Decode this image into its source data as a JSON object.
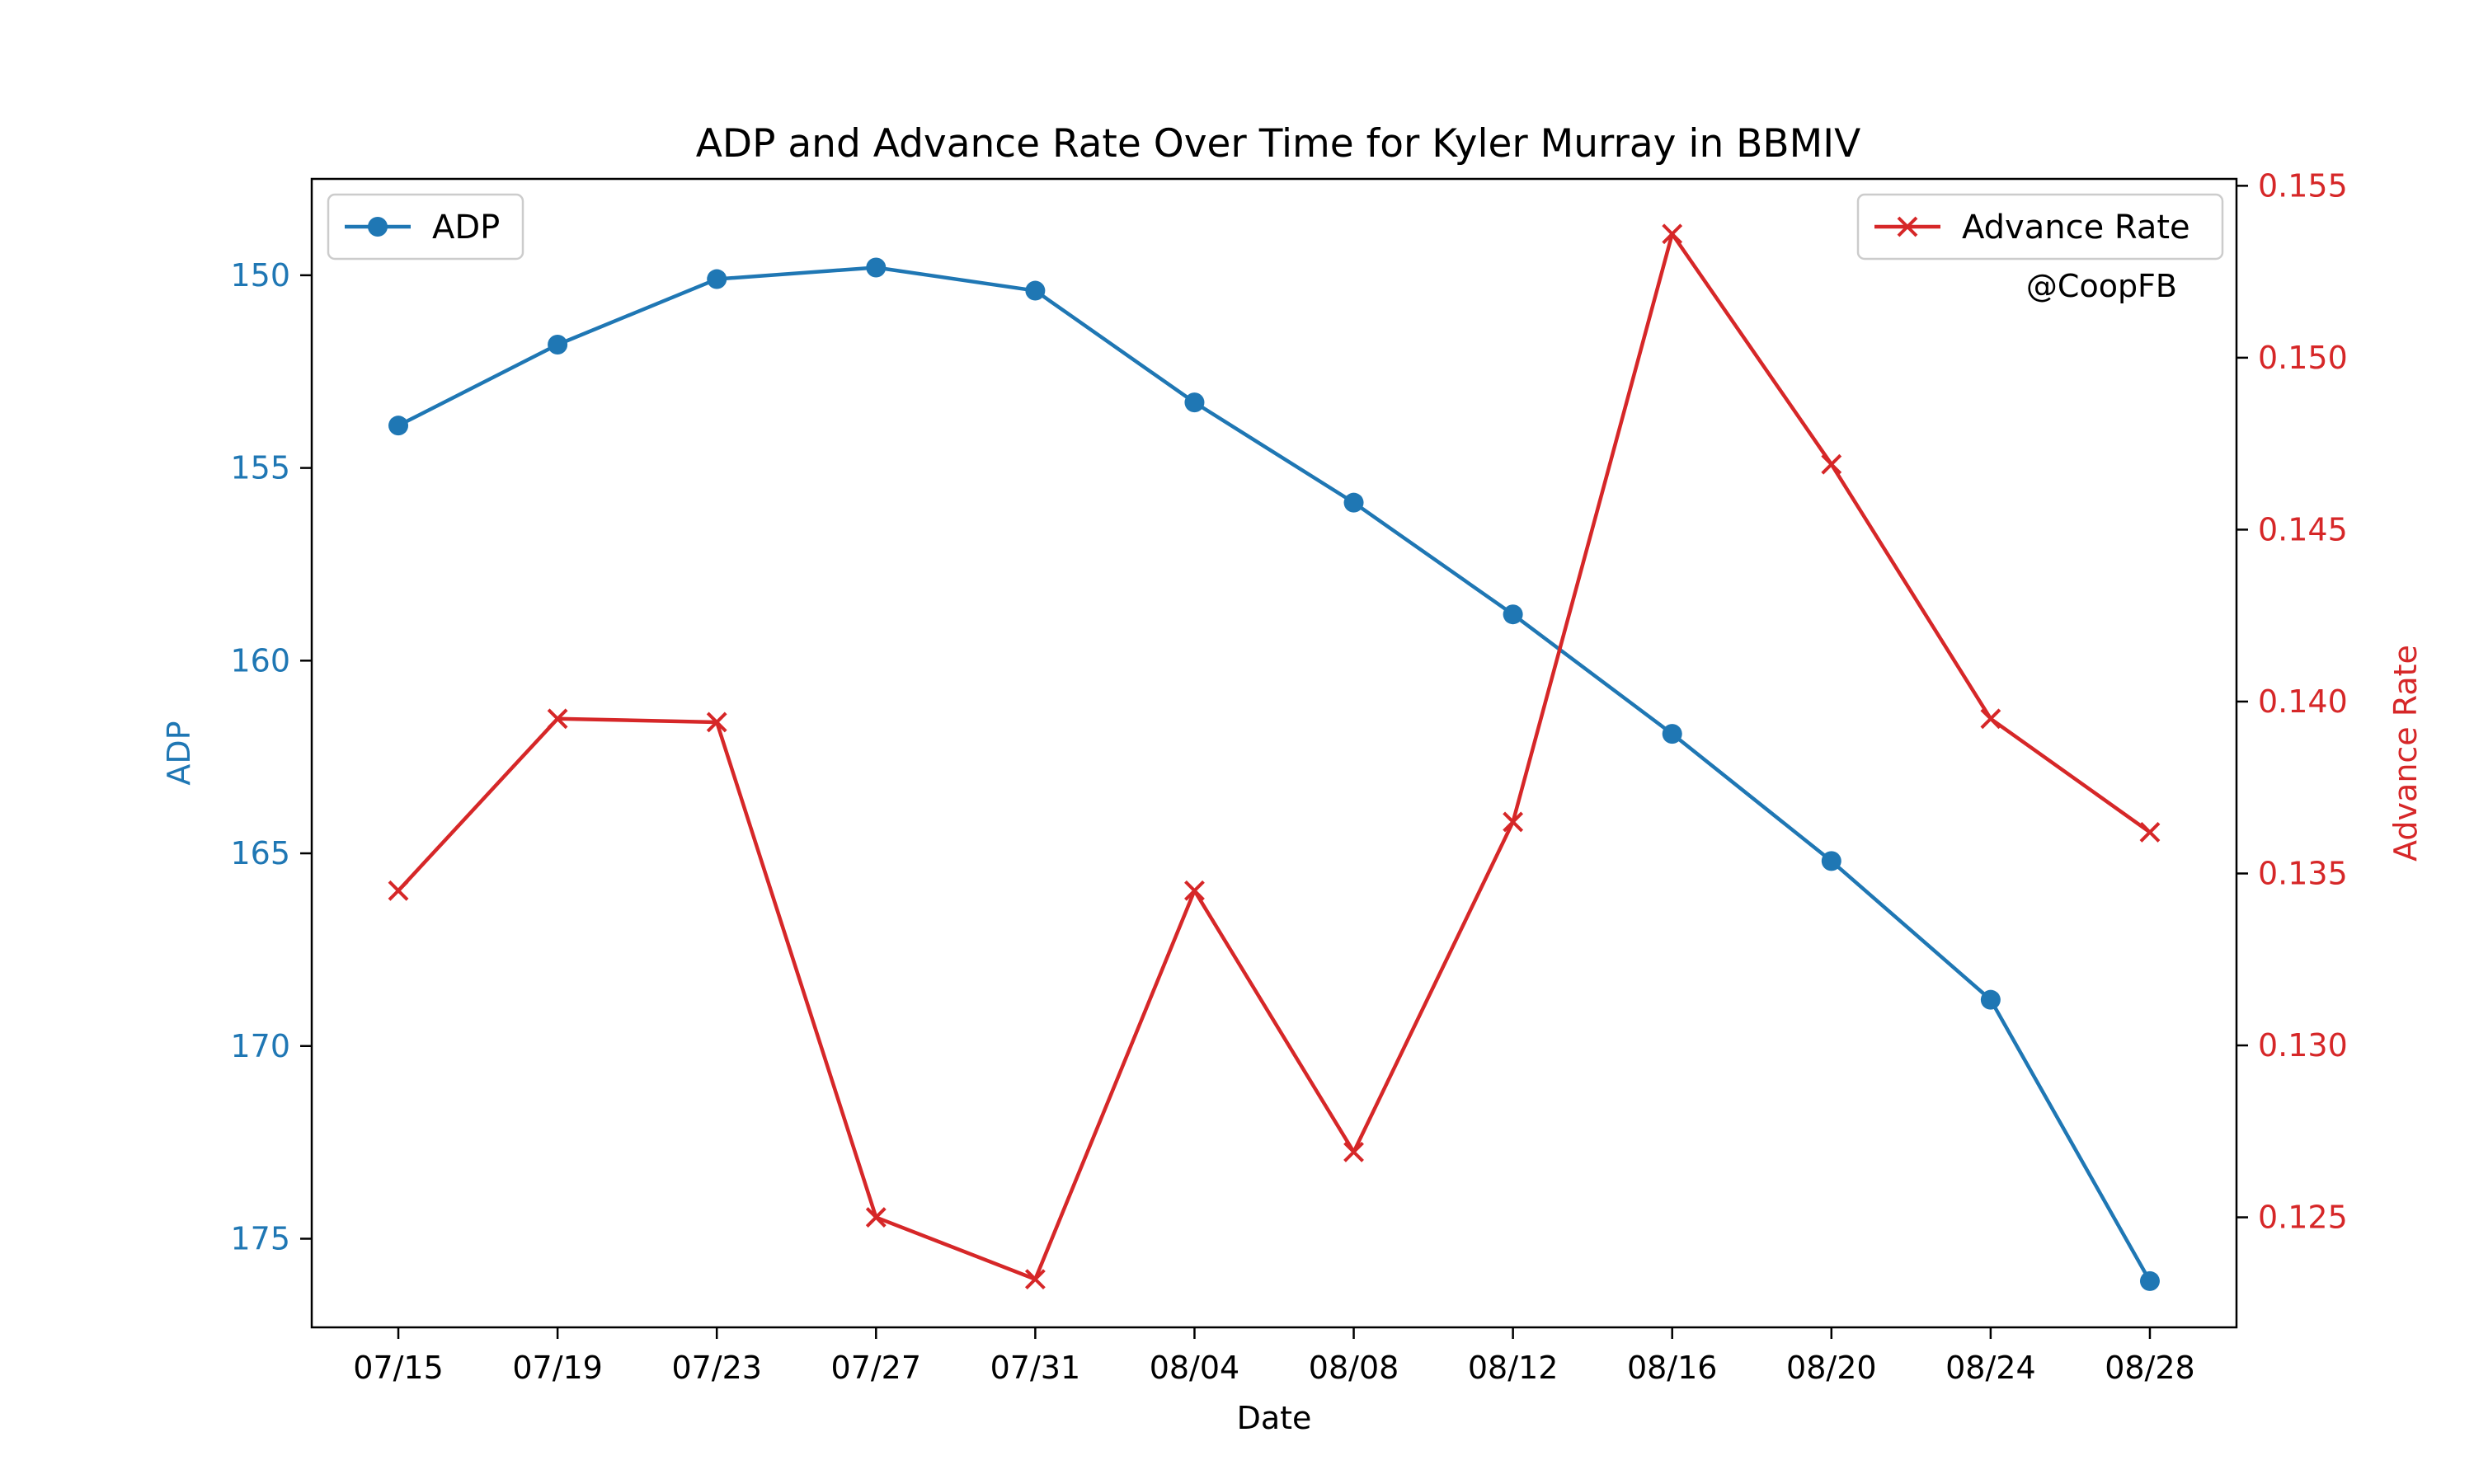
{
  "chart_data": {
    "type": "line",
    "title": "ADP and Advance Rate Over Time for Kyler Murray in BBMIV",
    "xlabel": "Date",
    "categories": [
      "07/15",
      "07/19",
      "07/23",
      "07/27",
      "07/31",
      "08/04",
      "08/08",
      "08/12",
      "08/16",
      "08/20",
      "08/24",
      "08/28"
    ],
    "annotation": "@CoopFB",
    "grid": false,
    "left_axis": {
      "label": "ADP",
      "inverted": true,
      "range": [
        177.3,
        147.5
      ],
      "ticks": [
        150,
        155,
        160,
        165,
        170,
        175
      ],
      "color": "#1f77b4"
    },
    "right_axis": {
      "label": "Advance Rate",
      "range": [
        0.1218,
        0.1552
      ],
      "ticks": [
        0.125,
        0.13,
        0.135,
        0.14,
        0.145,
        0.15,
        0.155
      ],
      "tick_labels": [
        "0.125",
        "0.130",
        "0.135",
        "0.140",
        "0.145",
        "0.150",
        "0.155"
      ],
      "color": "#d62728"
    },
    "series": [
      {
        "name": "ADP",
        "axis": "left",
        "marker": "circle",
        "color": "#1f77b4",
        "values": [
          153.9,
          151.8,
          150.1,
          149.8,
          150.4,
          153.3,
          155.9,
          158.8,
          161.9,
          165.2,
          168.8,
          176.1
        ]
      },
      {
        "name": "Advance Rate",
        "axis": "right",
        "marker": "x",
        "color": "#d62728",
        "values": [
          0.1345,
          0.1395,
          0.1394,
          0.125,
          0.1232,
          0.1345,
          0.1269,
          0.1365,
          0.1536,
          0.1469,
          0.1395,
          0.1362
        ]
      }
    ],
    "legends": [
      {
        "series": "ADP",
        "position": "upper-left"
      },
      {
        "series": "Advance Rate",
        "position": "upper-right"
      }
    ]
  }
}
